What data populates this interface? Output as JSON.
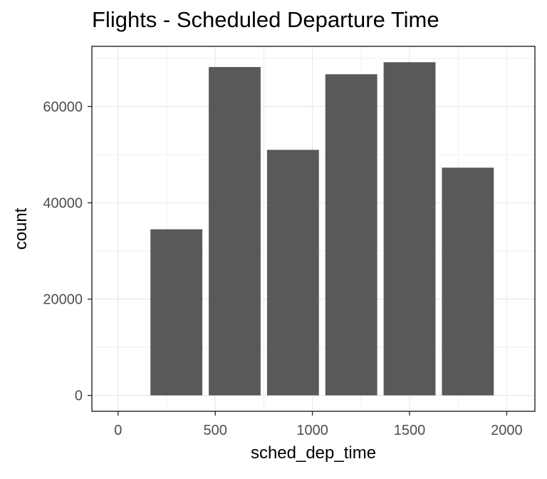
{
  "chart_data": {
    "type": "bar",
    "title": "Flights - Scheduled Departure Time",
    "xlabel": "sched_dep_time",
    "ylabel": "count",
    "bin_width": 300,
    "x_centers": [
      0,
      300,
      600,
      900,
      1200,
      1500,
      1800
    ],
    "values": [
      0,
      34500,
      68200,
      51000,
      66700,
      69200,
      47300
    ],
    "xlim": [
      -135,
      2145
    ],
    "ylim": [
      -3300,
      72500
    ],
    "x_ticks": [
      0,
      500,
      1000,
      1500,
      2000
    ],
    "y_ticks": [
      0,
      20000,
      40000,
      60000
    ],
    "grid": true,
    "bar_color": "#595959"
  }
}
